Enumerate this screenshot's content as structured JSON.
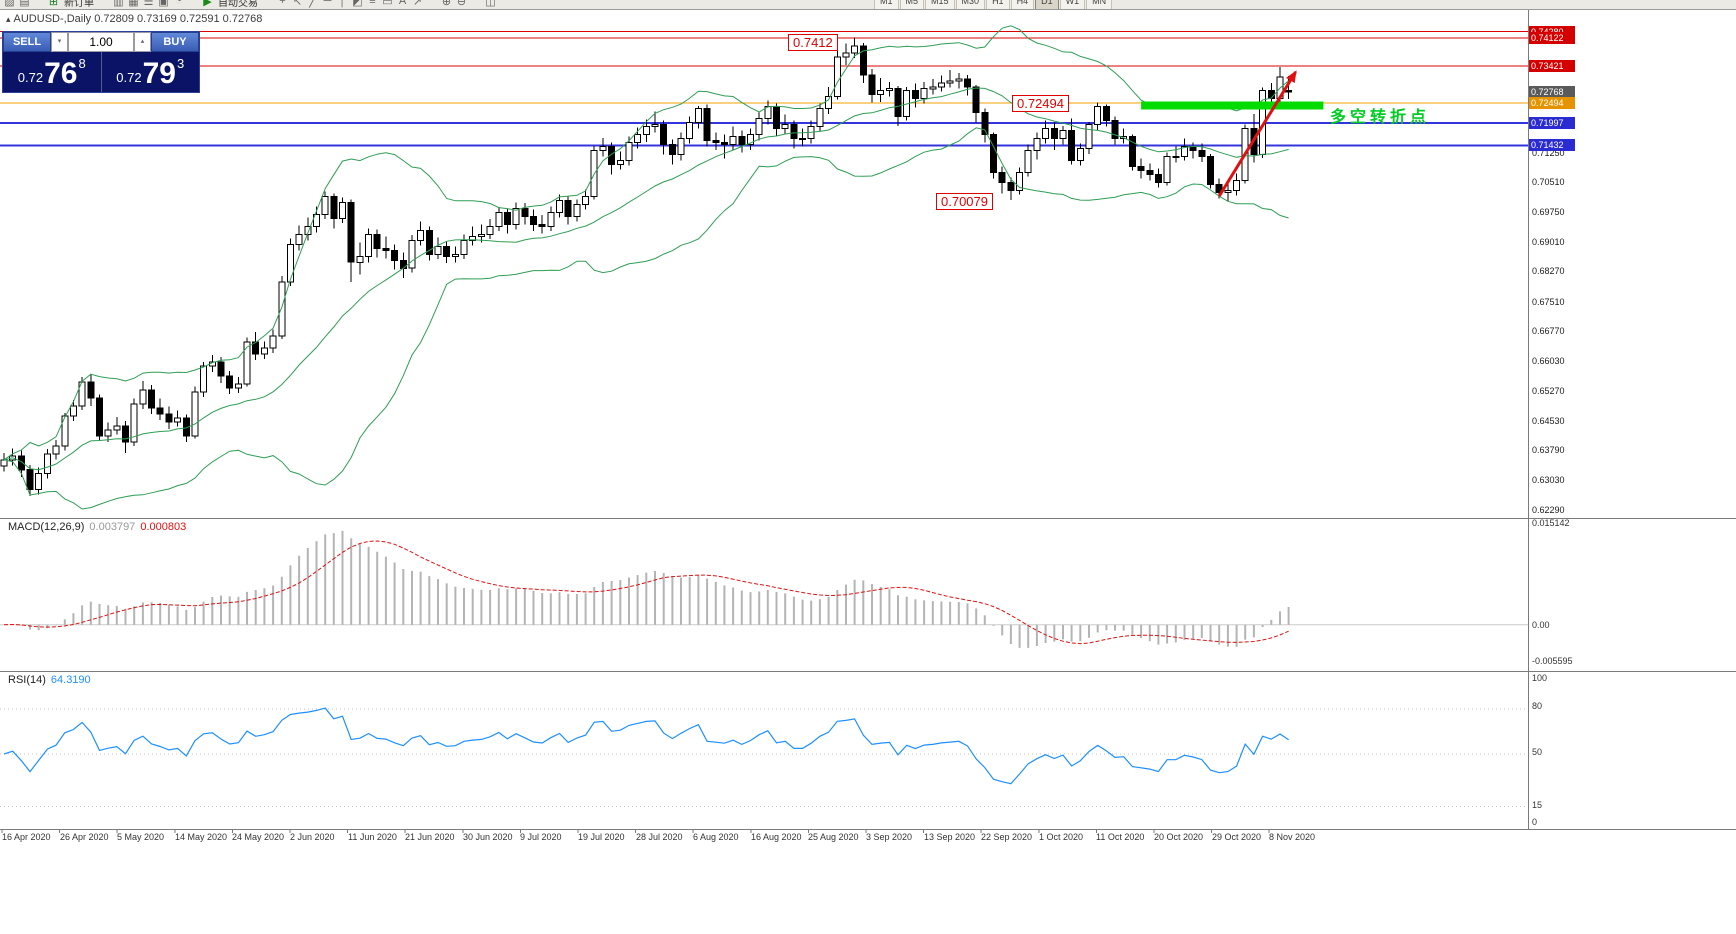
{
  "toolbar": {
    "items": [
      {
        "name": "chart-window-icon",
        "glyph": "▨"
      },
      {
        "name": "profiles-icon",
        "glyph": "▤"
      },
      {
        "name": "new-order-icon",
        "glyph": "⊞",
        "color": "#1a7a2a",
        "gap": true
      },
      {
        "name": "new-order-label",
        "text": "新订单"
      },
      {
        "name": "market-watch-icon",
        "glyph": "▥",
        "gap": true
      },
      {
        "name": "data-window-icon",
        "glyph": "▦"
      },
      {
        "name": "navigator-icon",
        "glyph": "☰"
      },
      {
        "name": "terminal-icon",
        "glyph": "▣"
      },
      {
        "name": "strategy-tester-icon",
        "glyph": "◔"
      },
      {
        "name": "autotrading-icon",
        "glyph": "▶",
        "color": "#1a8a1a",
        "gap": true
      },
      {
        "name": "autotrading-label",
        "text": "自动交易"
      },
      {
        "name": "crosshair-icon",
        "glyph": "+",
        "gap": true
      },
      {
        "name": "cursor-icon",
        "glyph": "↖"
      },
      {
        "name": "trendline-icon",
        "glyph": "╱"
      },
      {
        "name": "horizontal-line-icon",
        "glyph": "─"
      },
      {
        "name": "vertical-line-icon",
        "glyph": "│"
      },
      {
        "name": "channel-icon",
        "glyph": "◩"
      },
      {
        "name": "fibonacci-icon",
        "glyph": "≡"
      },
      {
        "name": "rectangle-icon",
        "glyph": "▭"
      },
      {
        "name": "text-icon",
        "glyph": "A"
      },
      {
        "name": "arrows-icon",
        "glyph": "↗"
      },
      {
        "name": "zoom-in-icon",
        "glyph": "⊕",
        "gap": true
      },
      {
        "name": "zoom-out-icon",
        "glyph": "⊖"
      },
      {
        "name": "tile-windows-icon",
        "glyph": "◫",
        "gap": true
      }
    ],
    "periods": {
      "labels": [
        "M1",
        "M5",
        "M15",
        "M30",
        "H1",
        "H4",
        "D1",
        "W1",
        "MN"
      ],
      "active": "D1"
    }
  },
  "chart_header": {
    "collapse_icon": "▴",
    "symbol_info": "AUDUSD-,Daily 0.72809 0.73169 0.72591 0.72768"
  },
  "trade_panel": {
    "sell_label": "SELL",
    "buy_label": "BUY",
    "volume": "1.00",
    "spin_down": "▾",
    "spin_up": "▴",
    "sell_price": {
      "prefix": "0.72",
      "big": "76",
      "pips": "8"
    },
    "buy_price": {
      "prefix": "0.72",
      "big": "79",
      "pips": "3"
    }
  },
  "annotations": {
    "peak": "0.7412",
    "pivot": "0.72494",
    "low": "0.70079",
    "note": "多空转折点"
  },
  "price_scale": {
    "tags": [
      {
        "text": "0.74280",
        "price": 0.7428,
        "bg": "#d40000"
      },
      {
        "text": "0.74122",
        "price": 0.74122,
        "bg": "#d40000"
      },
      {
        "text": "0.73421",
        "price": 0.73421,
        "bg": "#d40000"
      },
      {
        "text": "0.72768",
        "price": 0.72768,
        "bg": "#5a5a5a"
      },
      {
        "text": "0.72494",
        "price": 0.72494,
        "bg": "#e59400"
      },
      {
        "text": "0.71997",
        "price": 0.71997,
        "bg": "#2b2bd4"
      },
      {
        "text": "0.71432",
        "price": 0.71432,
        "bg": "#2b2bd4"
      }
    ],
    "labels": [
      {
        "text": "0.71250",
        "price": 0.7125
      },
      {
        "text": "0.70510",
        "price": 0.7051
      },
      {
        "text": "0.69750",
        "price": 0.6975
      },
      {
        "text": "0.69010",
        "price": 0.6901
      },
      {
        "text": "0.68270",
        "price": 0.6827
      },
      {
        "text": "0.67510",
        "price": 0.6751
      },
      {
        "text": "0.66770",
        "price": 0.6677
      },
      {
        "text": "0.66030",
        "price": 0.6603
      },
      {
        "text": "0.65270",
        "price": 0.6527
      },
      {
        "text": "0.64530",
        "price": 0.6453
      },
      {
        "text": "0.63790",
        "price": 0.6379
      },
      {
        "text": "0.63030",
        "price": 0.6303
      },
      {
        "text": "0.62290",
        "price": 0.6229
      }
    ]
  },
  "macd": {
    "label": "MACD(12,26,9)",
    "main_value": "0.003797",
    "signal_value": "0.000803",
    "scale_top": "0.015142",
    "scale_zero": "0.00",
    "scale_bottom": "-0.005595",
    "range_max": 0.015142,
    "range_min": -0.005595,
    "histogram_color": "#b4b4b4",
    "signal_color": "#e01010"
  },
  "rsi": {
    "label": "RSI(14)",
    "value": "64.3190",
    "line_color": "#1e90ff",
    "levels": [
      80,
      50,
      15
    ],
    "scale_labels": {
      "top": "100",
      "l80": "80",
      "l50": "50",
      "l15": "15",
      "bottom": "0"
    }
  },
  "x_axis": {
    "dates": [
      "16 Apr 2020",
      "26 Apr 2020",
      "5 May 2020",
      "14 May 2020",
      "24 May 2020",
      "2 Jun 2020",
      "11 Jun 2020",
      "21 Jun 2020",
      "30 Jun 2020",
      "9 Jul 2020",
      "19 Jul 2020",
      "28 Jul 2020",
      "6 Aug 2020",
      "16 Aug 2020",
      "25 Aug 2020",
      "3 Sep 2020",
      "13 Sep 2020",
      "22 Sep 2020",
      "1 Oct 2020",
      "11 Oct 2020",
      "20 Oct 2020",
      "29 Oct 2020",
      "8 Nov 2020"
    ]
  },
  "chart_data": {
    "type": "candlestick",
    "symbol": "AUDUSD",
    "timeframe": "Daily",
    "displayed_ohlc": {
      "open": "0.72809",
      "high": "0.73169",
      "low": "0.72591",
      "close": "0.72768"
    },
    "scale": {
      "price_top": 0.74824,
      "price_bottom": 0.62115
    },
    "bollinger": {
      "period": 20,
      "deviation": 2,
      "color": "#2f9e54"
    },
    "hlines": [
      {
        "price": 0.7428,
        "color": "#dd0000",
        "width": 1
      },
      {
        "price": 0.74122,
        "color": "#dd0000",
        "width": 1
      },
      {
        "price": 0.73421,
        "color": "#dd0000",
        "width": 1
      },
      {
        "price": 0.72494,
        "color": "#f0a000",
        "width": 1
      },
      {
        "price": 0.71997,
        "color": "#3434dc",
        "width": 2
      },
      {
        "price": 0.71432,
        "color": "#3434dc",
        "width": 2
      }
    ],
    "support_zone": {
      "price": 0.7243,
      "from_index": 131,
      "to_index": 152,
      "thickness": 8,
      "color": "#00dc00"
    },
    "trend_arrow": {
      "from": {
        "index": 140,
        "price": 0.7016
      },
      "to": {
        "index": 148.8,
        "price": 0.7327
      },
      "color": "#e01010"
    },
    "candles": [
      [
        0.634,
        0.6372,
        0.6325,
        0.6355
      ],
      [
        0.6355,
        0.6383,
        0.634,
        0.6365
      ],
      [
        0.6365,
        0.6378,
        0.6312,
        0.633
      ],
      [
        0.633,
        0.6342,
        0.6264,
        0.628
      ],
      [
        0.628,
        0.6335,
        0.6268,
        0.632
      ],
      [
        0.632,
        0.6382,
        0.6308,
        0.637
      ],
      [
        0.637,
        0.6404,
        0.6356,
        0.639
      ],
      [
        0.639,
        0.6472,
        0.6378,
        0.6465
      ],
      [
        0.6465,
        0.6505,
        0.6452,
        0.649
      ],
      [
        0.649,
        0.6562,
        0.648,
        0.655
      ],
      [
        0.655,
        0.657,
        0.649,
        0.651
      ],
      [
        0.651,
        0.6518,
        0.6402,
        0.6415
      ],
      [
        0.6415,
        0.6448,
        0.64,
        0.643
      ],
      [
        0.643,
        0.6462,
        0.6418,
        0.644
      ],
      [
        0.644,
        0.6452,
        0.6372,
        0.64
      ],
      [
        0.64,
        0.6508,
        0.639,
        0.6495
      ],
      [
        0.6495,
        0.6552,
        0.6482,
        0.653
      ],
      [
        0.653,
        0.6542,
        0.647,
        0.6485
      ],
      [
        0.6485,
        0.6508,
        0.6455,
        0.647
      ],
      [
        0.647,
        0.6488,
        0.6432,
        0.645
      ],
      [
        0.645,
        0.6478,
        0.6438,
        0.646
      ],
      [
        0.646,
        0.6468,
        0.64,
        0.6415
      ],
      [
        0.6415,
        0.6538,
        0.6408,
        0.6525
      ],
      [
        0.6525,
        0.66,
        0.6512,
        0.659
      ],
      [
        0.659,
        0.6618,
        0.6575,
        0.66
      ],
      [
        0.66,
        0.6612,
        0.6548,
        0.6565
      ],
      [
        0.6565,
        0.6578,
        0.652,
        0.6535
      ],
      [
        0.6535,
        0.6562,
        0.6522,
        0.6545
      ],
      [
        0.6545,
        0.6662,
        0.6538,
        0.665
      ],
      [
        0.665,
        0.6675,
        0.6605,
        0.662
      ],
      [
        0.662,
        0.6652,
        0.6608,
        0.6635
      ],
      [
        0.6635,
        0.6682,
        0.6622,
        0.6665
      ],
      [
        0.6665,
        0.6815,
        0.6658,
        0.68
      ],
      [
        0.68,
        0.691,
        0.679,
        0.6895
      ],
      [
        0.6895,
        0.6942,
        0.688,
        0.692
      ],
      [
        0.692,
        0.6962,
        0.6905,
        0.694
      ],
      [
        0.694,
        0.699,
        0.6925,
        0.697
      ],
      [
        0.697,
        0.7028,
        0.6958,
        0.7015
      ],
      [
        0.7015,
        0.7022,
        0.6935,
        0.696
      ],
      [
        0.696,
        0.7012,
        0.6948,
        0.7
      ],
      [
        0.7,
        0.7008,
        0.68,
        0.685
      ],
      [
        0.685,
        0.69,
        0.682,
        0.6865
      ],
      [
        0.6865,
        0.6935,
        0.685,
        0.692
      ],
      [
        0.692,
        0.6932,
        0.6862,
        0.6885
      ],
      [
        0.6885,
        0.6915,
        0.686,
        0.688
      ],
      [
        0.688,
        0.6895,
        0.6832,
        0.6855
      ],
      [
        0.6855,
        0.6875,
        0.681,
        0.6835
      ],
      [
        0.6835,
        0.6918,
        0.6825,
        0.6905
      ],
      [
        0.6905,
        0.6952,
        0.6892,
        0.693
      ],
      [
        0.693,
        0.694,
        0.6855,
        0.687
      ],
      [
        0.687,
        0.6912,
        0.6858,
        0.689
      ],
      [
        0.689,
        0.6902,
        0.6848,
        0.6865
      ],
      [
        0.6865,
        0.689,
        0.685,
        0.687
      ],
      [
        0.687,
        0.692,
        0.6858,
        0.6905
      ],
      [
        0.6905,
        0.694,
        0.6892,
        0.6915
      ],
      [
        0.6915,
        0.6945,
        0.69,
        0.692
      ],
      [
        0.692,
        0.6958,
        0.6908,
        0.694
      ],
      [
        0.694,
        0.6988,
        0.6928,
        0.6975
      ],
      [
        0.6975,
        0.6985,
        0.6922,
        0.6945
      ],
      [
        0.6945,
        0.7,
        0.6932,
        0.6985
      ],
      [
        0.6985,
        0.6998,
        0.6945,
        0.6965
      ],
      [
        0.6965,
        0.6982,
        0.6928,
        0.6945
      ],
      [
        0.6945,
        0.6968,
        0.6922,
        0.694
      ],
      [
        0.694,
        0.699,
        0.6928,
        0.6975
      ],
      [
        0.6975,
        0.702,
        0.6962,
        0.7005
      ],
      [
        0.7005,
        0.7015,
        0.6945,
        0.6965
      ],
      [
        0.6965,
        0.7008,
        0.6952,
        0.6995
      ],
      [
        0.6995,
        0.7032,
        0.6982,
        0.7015
      ],
      [
        0.7015,
        0.7142,
        0.7008,
        0.713
      ],
      [
        0.713,
        0.7162,
        0.7115,
        0.714
      ],
      [
        0.714,
        0.715,
        0.707,
        0.7095
      ],
      [
        0.7095,
        0.7128,
        0.7082,
        0.7105
      ],
      [
        0.7105,
        0.7165,
        0.7092,
        0.715
      ],
      [
        0.715,
        0.7188,
        0.7135,
        0.717
      ],
      [
        0.717,
        0.7208,
        0.7152,
        0.719
      ],
      [
        0.719,
        0.7228,
        0.7175,
        0.7195
      ],
      [
        0.7195,
        0.7205,
        0.712,
        0.7145
      ],
      [
        0.7145,
        0.7158,
        0.7095,
        0.712
      ],
      [
        0.712,
        0.7175,
        0.7105,
        0.716
      ],
      [
        0.716,
        0.7215,
        0.7148,
        0.72
      ],
      [
        0.72,
        0.7242,
        0.7185,
        0.7235
      ],
      [
        0.7235,
        0.7245,
        0.714,
        0.7155
      ],
      [
        0.7155,
        0.7175,
        0.7132,
        0.715
      ],
      [
        0.715,
        0.717,
        0.711,
        0.7145
      ],
      [
        0.7145,
        0.719,
        0.713,
        0.7165
      ],
      [
        0.7165,
        0.718,
        0.7125,
        0.7145
      ],
      [
        0.7145,
        0.7185,
        0.7132,
        0.717
      ],
      [
        0.717,
        0.7225,
        0.7155,
        0.721
      ],
      [
        0.721,
        0.7255,
        0.7195,
        0.724
      ],
      [
        0.724,
        0.7248,
        0.7165,
        0.7185
      ],
      [
        0.7185,
        0.722,
        0.717,
        0.7195
      ],
      [
        0.7195,
        0.7205,
        0.7135,
        0.716
      ],
      [
        0.716,
        0.7185,
        0.714,
        0.716
      ],
      [
        0.716,
        0.7205,
        0.7148,
        0.719
      ],
      [
        0.719,
        0.7248,
        0.7178,
        0.7235
      ],
      [
        0.7235,
        0.729,
        0.7222,
        0.7265
      ],
      [
        0.7265,
        0.738,
        0.7258,
        0.7365
      ],
      [
        0.7365,
        0.7398,
        0.7345,
        0.7375
      ],
      [
        0.7375,
        0.7413,
        0.7362,
        0.7392
      ],
      [
        0.7392,
        0.74,
        0.73,
        0.732
      ],
      [
        0.732,
        0.7335,
        0.725,
        0.727
      ],
      [
        0.727,
        0.7312,
        0.7252,
        0.728
      ],
      [
        0.728,
        0.7302,
        0.7265,
        0.7285
      ],
      [
        0.7285,
        0.7292,
        0.7192,
        0.7215
      ],
      [
        0.7215,
        0.729,
        0.7205,
        0.728
      ],
      [
        0.728,
        0.7298,
        0.7238,
        0.726
      ],
      [
        0.726,
        0.7302,
        0.7248,
        0.7285
      ],
      [
        0.7285,
        0.731,
        0.727,
        0.729
      ],
      [
        0.729,
        0.7318,
        0.7278,
        0.73
      ],
      [
        0.73,
        0.7332,
        0.7288,
        0.7305
      ],
      [
        0.7305,
        0.7325,
        0.7285,
        0.731
      ],
      [
        0.731,
        0.732,
        0.7268,
        0.729
      ],
      [
        0.729,
        0.7295,
        0.72,
        0.7225
      ],
      [
        0.7225,
        0.7235,
        0.715,
        0.717
      ],
      [
        0.717,
        0.7175,
        0.706,
        0.7075
      ],
      [
        0.7075,
        0.709,
        0.7022,
        0.705
      ],
      [
        0.705,
        0.7062,
        0.7006,
        0.703
      ],
      [
        0.703,
        0.7088,
        0.702,
        0.7075
      ],
      [
        0.7075,
        0.7145,
        0.7065,
        0.713
      ],
      [
        0.713,
        0.7175,
        0.7108,
        0.716
      ],
      [
        0.716,
        0.7205,
        0.7148,
        0.7185
      ],
      [
        0.7185,
        0.72,
        0.7132,
        0.716
      ],
      [
        0.716,
        0.7192,
        0.7145,
        0.718
      ],
      [
        0.718,
        0.721,
        0.7095,
        0.7105
      ],
      [
        0.7105,
        0.7148,
        0.7092,
        0.7135
      ],
      [
        0.7135,
        0.7202,
        0.7122,
        0.7195
      ],
      [
        0.7195,
        0.725,
        0.7182,
        0.724
      ],
      [
        0.724,
        0.7245,
        0.719,
        0.7205
      ],
      [
        0.7205,
        0.7215,
        0.7145,
        0.716
      ],
      [
        0.716,
        0.7185,
        0.7148,
        0.7165
      ],
      [
        0.7165,
        0.717,
        0.708,
        0.709
      ],
      [
        0.709,
        0.711,
        0.706,
        0.708
      ],
      [
        0.708,
        0.7098,
        0.7055,
        0.707
      ],
      [
        0.707,
        0.7085,
        0.7038,
        0.705
      ],
      [
        0.705,
        0.7125,
        0.7042,
        0.7115
      ],
      [
        0.7115,
        0.714,
        0.71,
        0.7115
      ],
      [
        0.7115,
        0.716,
        0.7105,
        0.714
      ],
      [
        0.714,
        0.715,
        0.711,
        0.713
      ],
      [
        0.713,
        0.7148,
        0.7102,
        0.7115
      ],
      [
        0.7115,
        0.7122,
        0.7035,
        0.7045
      ],
      [
        0.7045,
        0.706,
        0.701,
        0.7025
      ],
      [
        0.7025,
        0.7048,
        0.7002,
        0.703
      ],
      [
        0.703,
        0.7072,
        0.7018,
        0.7055
      ],
      [
        0.7055,
        0.7195,
        0.7048,
        0.7185
      ],
      [
        0.7185,
        0.7222,
        0.71,
        0.712
      ],
      [
        0.712,
        0.7288,
        0.7112,
        0.728
      ],
      [
        0.728,
        0.73,
        0.724,
        0.726
      ],
      [
        0.726,
        0.734,
        0.725,
        0.7315
      ],
      [
        0.72809,
        0.73169,
        0.72591,
        0.72768
      ]
    ]
  }
}
